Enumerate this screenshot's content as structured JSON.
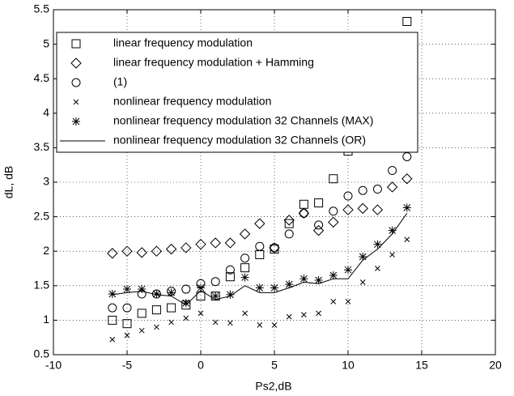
{
  "chart_data": {
    "type": "scatter",
    "xlabel": "Ps2,dB",
    "ylabel": "dL, dB",
    "xlim": [
      -10,
      20
    ],
    "xticks": [
      -10,
      -5,
      0,
      5,
      10,
      15,
      20
    ],
    "ylim": [
      0.5,
      5.5
    ],
    "yticks": [
      0.5,
      1,
      1.5,
      2,
      2.5,
      3,
      3.5,
      4,
      4.5,
      5,
      5.5
    ],
    "grid": true,
    "legend": "upper left",
    "series": [
      {
        "name": "linear frequency modulation",
        "marker": "square",
        "color": "#000000",
        "x": [
          -6,
          -5,
          -4,
          -3,
          -2,
          -1,
          0,
          1,
          2,
          3,
          4,
          5,
          6,
          7,
          8,
          9,
          10,
          14
        ],
        "values": [
          1.0,
          0.95,
          1.1,
          1.15,
          1.18,
          1.22,
          1.35,
          1.35,
          1.63,
          1.76,
          1.95,
          2.03,
          2.4,
          2.68,
          2.7,
          3.05,
          3.45,
          5.33
        ]
      },
      {
        "name": "linear frequency modulation + Hamming",
        "marker": "diamond",
        "color": "#000000",
        "x": [
          -6,
          -5,
          -4,
          -3,
          -2,
          -1,
          0,
          1,
          2,
          3,
          4,
          5,
          6,
          7,
          8,
          9,
          10,
          11,
          12,
          13,
          14
        ],
        "values": [
          1.97,
          2.0,
          1.98,
          2.0,
          2.03,
          2.05,
          2.1,
          2.12,
          2.12,
          2.25,
          2.4,
          2.05,
          2.45,
          2.55,
          2.3,
          2.42,
          2.6,
          2.62,
          2.6,
          2.93,
          3.05
        ]
      },
      {
        "name": "(1)",
        "marker": "circle",
        "color": "#000000",
        "x": [
          -6,
          -5,
          -4,
          -3,
          -2,
          -1,
          0,
          1,
          2,
          3,
          4,
          5,
          6,
          7,
          8,
          9,
          10,
          11,
          12,
          13,
          14
        ],
        "values": [
          1.18,
          1.18,
          1.38,
          1.38,
          1.42,
          1.45,
          1.53,
          1.56,
          1.73,
          1.9,
          2.07,
          2.05,
          2.25,
          2.55,
          2.38,
          2.58,
          2.8,
          2.88,
          2.9,
          3.17,
          3.37
        ]
      },
      {
        "name": "nonlinear frequency modulation",
        "marker": "x",
        "color": "#000000",
        "x": [
          -6,
          -5,
          -4,
          -3,
          -2,
          -1,
          0,
          1,
          2,
          3,
          4,
          5,
          6,
          7,
          8,
          9,
          10,
          11,
          12,
          13,
          14
        ],
        "values": [
          0.72,
          0.78,
          0.85,
          0.9,
          0.97,
          1.03,
          1.1,
          0.97,
          0.96,
          1.1,
          0.93,
          0.93,
          1.05,
          1.08,
          1.1,
          1.27,
          1.27,
          1.55,
          1.75,
          1.95,
          2.17
        ]
      },
      {
        "name": "nonlinear frequency modulation 32 Channels (MAX)",
        "marker": "star",
        "color": "#000000",
        "x": [
          -6,
          -5,
          -4,
          -3,
          -2,
          -1,
          0,
          1,
          2,
          3,
          4,
          5,
          6,
          7,
          8,
          9,
          10,
          11,
          12,
          13,
          14
        ],
        "values": [
          1.38,
          1.45,
          1.45,
          1.38,
          1.4,
          1.25,
          1.47,
          1.35,
          1.37,
          1.62,
          1.47,
          1.47,
          1.52,
          1.6,
          1.58,
          1.65,
          1.73,
          1.92,
          2.1,
          2.3,
          2.63
        ]
      },
      {
        "name": "nonlinear frequency modulation 32 Channels (OR)",
        "marker": "line",
        "color": "#000000",
        "x": [
          -6,
          -5,
          -4,
          -3,
          -2,
          -1,
          0,
          1,
          2,
          3,
          4,
          5,
          6,
          7,
          8,
          9,
          10,
          11,
          12,
          13,
          14
        ],
        "values": [
          1.37,
          1.4,
          1.42,
          1.37,
          1.35,
          1.22,
          1.43,
          1.3,
          1.35,
          1.5,
          1.4,
          1.4,
          1.47,
          1.55,
          1.53,
          1.6,
          1.6,
          1.87,
          2.03,
          2.25,
          2.55
        ]
      }
    ]
  }
}
